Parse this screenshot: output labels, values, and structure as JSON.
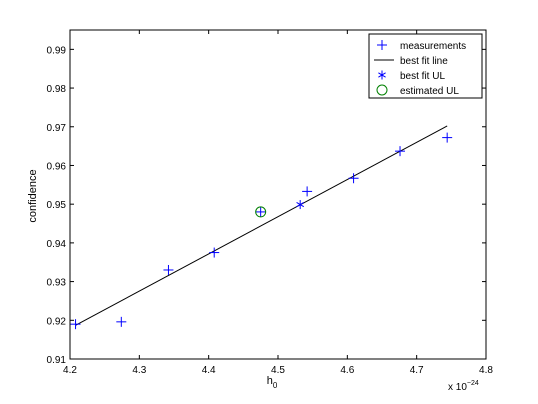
{
  "chart_data": {
    "type": "scatter",
    "xlabel": "h",
    "xlabel_subscript": "0",
    "ylabel": "confidence",
    "x_multiplier": {
      "base": "x 10",
      "exponent": "−24"
    },
    "xlim": [
      4.2,
      4.8
    ],
    "ylim": [
      0.91,
      0.995
    ],
    "xticks": [
      4.2,
      4.3,
      4.4,
      4.5,
      4.6,
      4.7,
      4.8
    ],
    "xtick_labels": [
      "4.2",
      "4.3",
      "4.4",
      "4.5",
      "4.6",
      "4.7",
      "4.8"
    ],
    "yticks": [
      0.91,
      0.92,
      0.93,
      0.94,
      0.95,
      0.96,
      0.97,
      0.98,
      0.99
    ],
    "ytick_labels": [
      "0.91",
      "0.92",
      "0.93",
      "0.94",
      "0.95",
      "0.96",
      "0.97",
      "0.98",
      "0.99"
    ],
    "grid": false,
    "legend_position": "top-right",
    "series": [
      {
        "name": "measurements",
        "kind": "plus-markers",
        "color": "#0000ff",
        "x": [
          4.208,
          4.274,
          4.342,
          4.408,
          4.475,
          4.542,
          4.609,
          4.676,
          4.744
        ],
        "y": [
          0.919,
          0.9196,
          0.933,
          0.9375,
          0.948,
          0.9533,
          0.9567,
          0.9637,
          0.9672
        ]
      },
      {
        "name": "best fit line",
        "kind": "line",
        "color": "#000000",
        "x": [
          4.208,
          4.744
        ],
        "y": [
          0.9187,
          0.9702
        ]
      },
      {
        "name": "best fit UL",
        "kind": "star-marker",
        "color": "#0000ff",
        "x": [
          4.532
        ],
        "y": [
          0.9499
        ]
      },
      {
        "name": "estimated UL",
        "kind": "circle-marker",
        "color": "#008000",
        "x": [
          4.475
        ],
        "y": [
          0.948
        ]
      }
    ]
  }
}
